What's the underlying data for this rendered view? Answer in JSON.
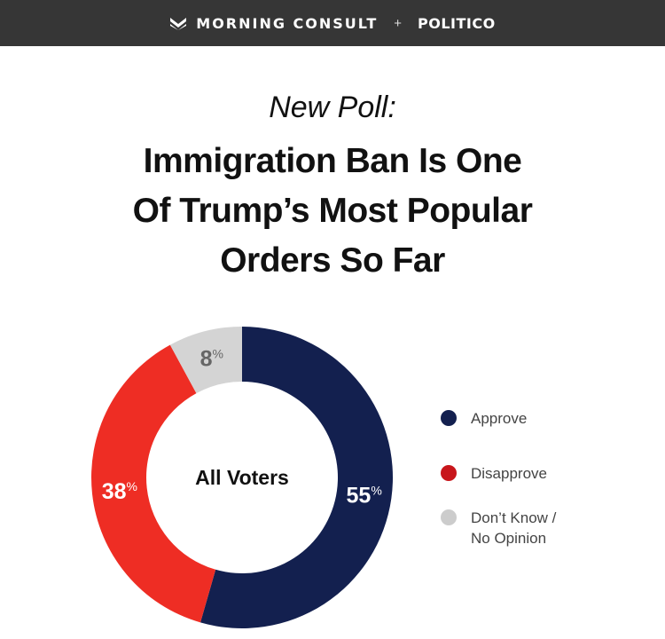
{
  "header": {
    "brand_left": "MORNING CONSULT",
    "plus": "+",
    "brand_right": "POLITICO",
    "logo_icon": "morning-consult-m-logo"
  },
  "subtitle": "New Poll:",
  "title_lines": [
    "Immigration Ban Is One",
    "Of Trump’s Most Popular",
    "Orders So Far"
  ],
  "chart_data": {
    "type": "pie",
    "donut": true,
    "center_label": "All Voters",
    "slices": [
      {
        "label": "Approve",
        "value": 55,
        "color": "#13204f"
      },
      {
        "label": "Disapprove",
        "value": 38,
        "color": "#ee2d24"
      },
      {
        "label": "Don’t Know / No Opinion",
        "value": 8,
        "color": "#d4d4d4"
      }
    ],
    "value_suffix": "%",
    "legend_position": "right",
    "legend_entries": [
      {
        "lines": [
          "Approve"
        ],
        "color": "#13204f"
      },
      {
        "lines": [
          "Disapprove"
        ],
        "color": "#c8161b"
      },
      {
        "lines": [
          "Don’t Know /",
          "No Opinion"
        ],
        "color": "#cccccc"
      }
    ]
  }
}
